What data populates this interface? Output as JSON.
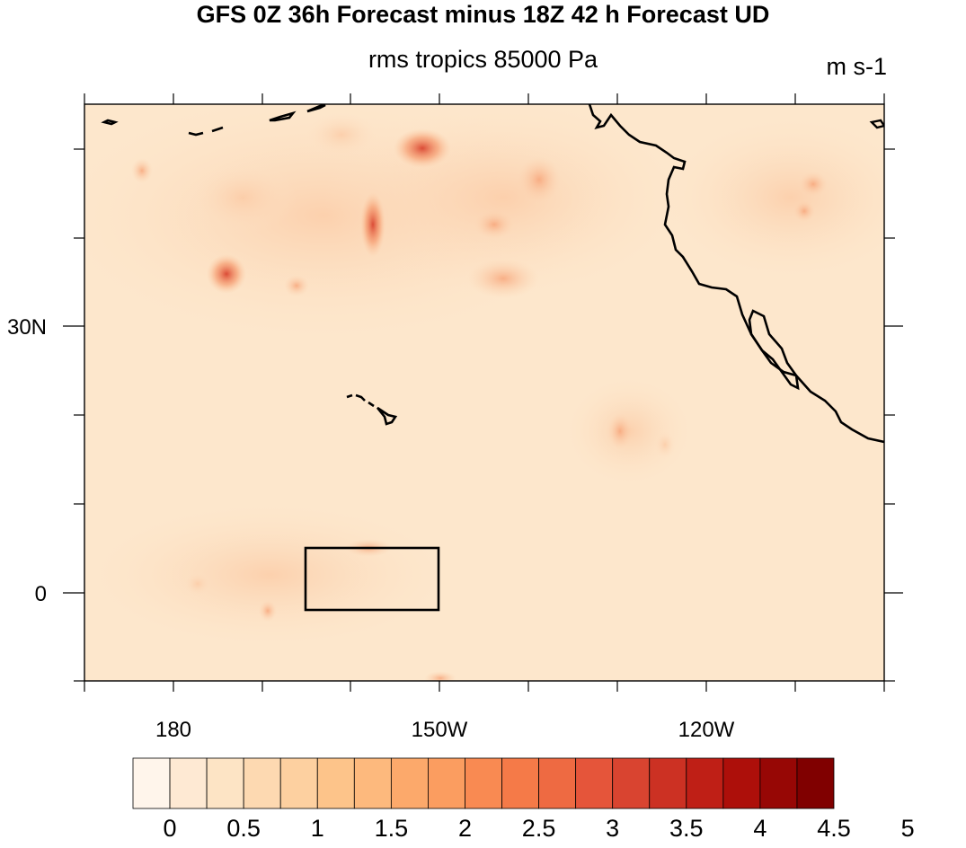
{
  "title": "GFS 0Z 36h Forecast minus 18Z 42 h Forecast UD",
  "subtitle": "rms tropics 85000 Pa",
  "units": "m s-1",
  "colors": {
    "background_fill": "#fde6c8",
    "coastline": "#000000",
    "box": "#000000"
  },
  "lat_labels": [
    "30N",
    "0"
  ],
  "lon_labels": [
    "180",
    "150W",
    "120W"
  ],
  "colorbar": {
    "colors": [
      "#fff5eb",
      "#fee9d3",
      "#fde4c5",
      "#fdd9b1",
      "#fdd0a0",
      "#fdc48a",
      "#fdb97d",
      "#fca96b",
      "#fb9d60",
      "#f98a52",
      "#f57a48",
      "#ee6a42",
      "#e5553a",
      "#d94430",
      "#cc3123",
      "#bf1f16",
      "#ad0f0a",
      "#970705",
      "#800000"
    ],
    "labels": [
      "0",
      "0.5",
      "1",
      "1.5",
      "2",
      "2.5",
      "3",
      "3.5",
      "4",
      "4.5",
      "5"
    ]
  }
}
